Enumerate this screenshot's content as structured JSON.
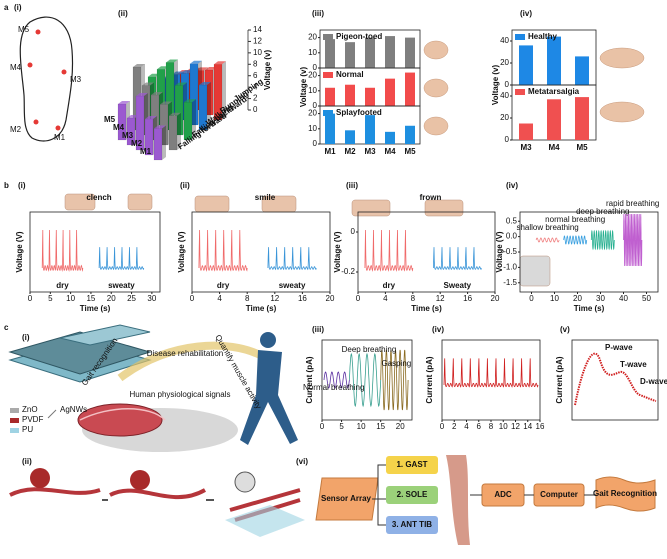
{
  "figure": {
    "a": {
      "label": "a",
      "i": {
        "label": "(i)",
        "points": [
          "M5",
          "M4",
          "M3",
          "M2",
          "M1"
        ]
      },
      "ii": {
        "label": "(ii)",
        "zlabel": "Voltage (v)",
        "zticks": [
          0,
          2,
          4,
          6,
          8,
          10,
          12,
          14
        ],
        "rows": [
          "M5",
          "M4",
          "M3",
          "M2",
          "M1"
        ],
        "motions": [
          "Jumping",
          "Running",
          "Walking",
          "Falling backward",
          "Falling forward"
        ]
      },
      "iii": {
        "label": "(iii)",
        "type": "bar",
        "ylabel": "Voltage (v)",
        "categories": [
          "M1",
          "M2",
          "M3",
          "M4",
          "M5"
        ],
        "ylim": [
          0,
          25
        ],
        "yticks": [
          0,
          10,
          20
        ],
        "series": [
          {
            "name": "Pigeon-toed",
            "color": "#7f7f7f",
            "values": [
              19,
              17,
              20,
              21,
              20
            ]
          },
          {
            "name": "Normal",
            "color": "#f24b4b",
            "values": [
              12,
              14,
              12,
              18,
              22
            ]
          },
          {
            "name": "Splayfooted",
            "color": "#1e8fe0",
            "values": [
              20,
              9,
              19,
              8,
              12
            ]
          }
        ]
      },
      "iv": {
        "label": "(iv)",
        "type": "bar",
        "ylabel": "Voltage (v)",
        "categories": [
          "M3",
          "M4",
          "M5"
        ],
        "ylim": [
          0,
          50
        ],
        "yticks": [
          0,
          20,
          40
        ],
        "series": [
          {
            "name": "Healthy",
            "color": "#1e88e5",
            "values": [
              36,
              44,
              26
            ]
          },
          {
            "name": "Metatarsalgia",
            "color": "#f05050",
            "values": [
              15,
              37,
              39
            ]
          }
        ]
      }
    },
    "b": {
      "label": "b",
      "i": {
        "label": "(i)",
        "action": "clench",
        "conditions": [
          "dry",
          "sweaty"
        ],
        "ylabel": "Voltage (V)",
        "xlabel": "Time (s)",
        "xlim": [
          0,
          32
        ],
        "xticks": [
          0,
          5,
          10,
          15,
          20,
          25,
          30
        ]
      },
      "ii": {
        "label": "(ii)",
        "action": "smile",
        "conditions": [
          "dry",
          "sweaty"
        ],
        "ylabel": "Voltage (V)",
        "xlabel": "Time (s)",
        "xlim": [
          0,
          20
        ],
        "xticks": [
          0,
          4,
          8,
          12,
          16,
          20
        ]
      },
      "iii": {
        "label": "(iii)",
        "action": "frown",
        "conditions": [
          "dry",
          "Sweaty"
        ],
        "ylabel": "Voltage (V)",
        "xlabel": "Time (s)",
        "xlim": [
          0,
          20
        ],
        "xticks": [
          0,
          4,
          8,
          12,
          16,
          20
        ],
        "ylim": [
          -0.3,
          0.1
        ],
        "yticks": [
          0,
          -0.2
        ]
      },
      "iv": {
        "label": "(iv)",
        "states": [
          "shallow breathing",
          "normal breathing",
          "deep breathing",
          "rapid breathing"
        ],
        "ylabel": "Voltage (V)",
        "xlabel": "Time (s)",
        "xlim": [
          -5,
          55
        ],
        "xticks": [
          0,
          10,
          20,
          30,
          40,
          50
        ],
        "ylim": [
          -1.8,
          0.8
        ],
        "yticks": [
          0.5,
          {
            "value": 0,
            "label": "0.0"
          },
          -0.5,
          {
            "value": -1,
            "label": "-1.0"
          },
          -1.5
        ]
      }
    },
    "c": {
      "label": "c",
      "i": {
        "label": "(i)",
        "roles": [
          "Gait recognition",
          "Disease rehabilitation",
          "Quantify muscle activity"
        ],
        "center": "Human physiological signals",
        "materials": [
          "ZnO",
          "PVDF",
          "AgNWs",
          "PU"
        ]
      },
      "ii": {
        "label": "(ii)"
      },
      "iii": {
        "label": "(iii)",
        "ylabel": "Current (pA)",
        "states": [
          "Normal breathing",
          "Deep breathing",
          "Gasping"
        ],
        "xlim": [
          0,
          23
        ],
        "xticks": [
          0,
          5,
          10,
          15,
          20
        ]
      },
      "iv": {
        "label": "(iv)",
        "ylabel": "Current (pA)",
        "xlim": [
          0,
          16
        ],
        "xticks": [
          0,
          2,
          4,
          6,
          8,
          10,
          12,
          14,
          16
        ]
      },
      "v": {
        "label": "(v)",
        "ylabel": "Current (pA)",
        "waves": [
          "P-wave",
          "T-wave",
          "D-wave"
        ]
      },
      "vi": {
        "label": "(vi)",
        "input": "Sensor Array",
        "muscles": [
          "1. GAST",
          "2. SOLE",
          "3. ANT TIB"
        ],
        "steps": [
          "ADC",
          "Computer"
        ],
        "output": "Gait Recognition"
      }
    }
  }
}
